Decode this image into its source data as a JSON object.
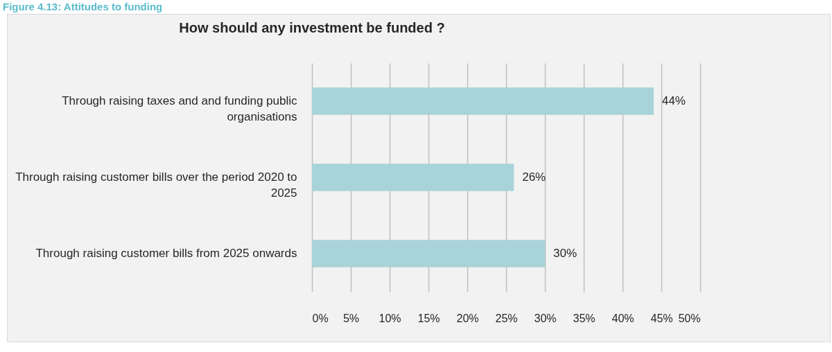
{
  "chart_data": {
    "type": "bar",
    "orientation": "horizontal",
    "title": "How should any investment be funded ?",
    "annotations": [
      "Figure 4.13: Attitudes to funding"
    ],
    "categories": [
      "Through raising taxes and and funding public organisations",
      "Through raising customer bills over the period 2020 to 2025",
      "Through raising customer bills from 2025 onwards"
    ],
    "values": [
      44,
      26,
      30
    ],
    "value_labels": [
      "44%",
      "26%",
      "30%"
    ],
    "color": "#a8d3d9",
    "xlim": [
      0,
      50
    ],
    "xticks": [
      {
        "value": 0,
        "label": "0%"
      },
      {
        "value": 5,
        "label": "5%"
      },
      {
        "value": 10,
        "label": "10%"
      },
      {
        "value": 15,
        "label": "15%"
      },
      {
        "value": 20,
        "label": "20%"
      },
      {
        "value": 25,
        "label": "25%"
      },
      {
        "value": 30,
        "label": "30%"
      },
      {
        "value": 35,
        "label": "35%"
      },
      {
        "value": 40,
        "label": "40%"
      },
      {
        "value": 45,
        "label": "45%"
      },
      {
        "value": 50,
        "label": "50%"
      }
    ],
    "grid": "x"
  }
}
